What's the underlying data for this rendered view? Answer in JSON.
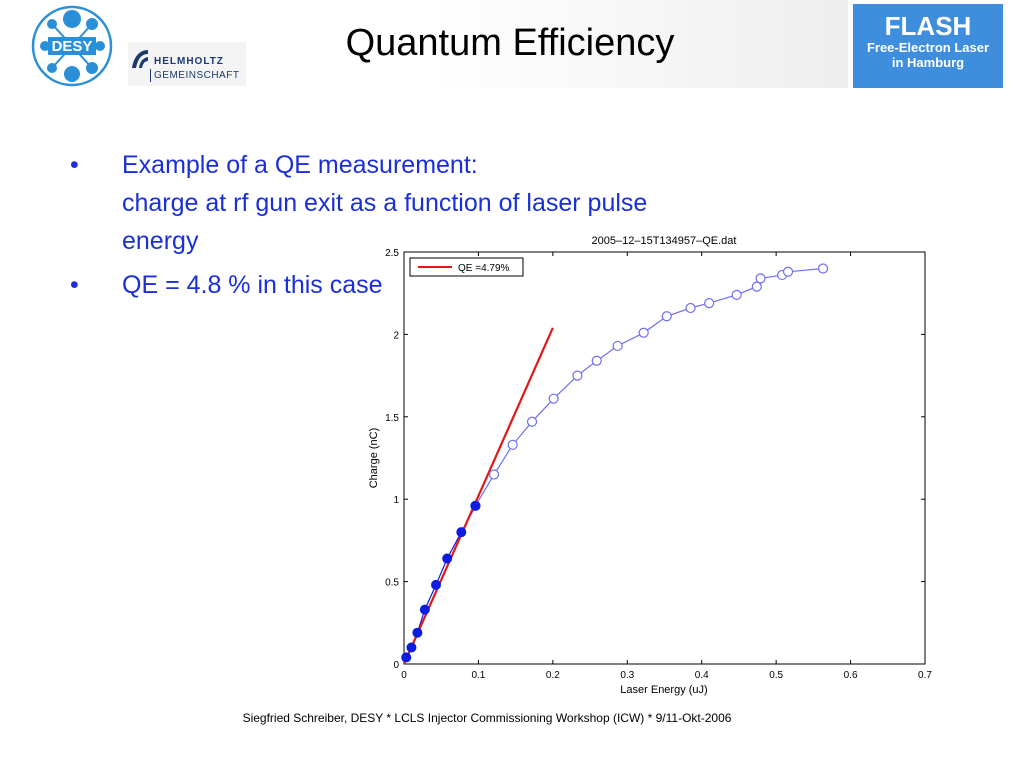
{
  "header": {
    "desy_label": "DESY",
    "helmholtz_line1": "HELMHOLTZ",
    "helmholtz_line2": "GEMEINSCHAFT",
    "title": "Quantum Efficiency",
    "flash_title": "FLASH",
    "flash_line1": "Free-Electron Laser",
    "flash_line2": "in Hamburg"
  },
  "bullets": [
    {
      "marker": "•",
      "lines": [
        "Example of a QE measurement:",
        "charge at rf gun exit as a function of laser pulse",
        "energy"
      ]
    },
    {
      "marker": "•",
      "lines": [
        "QE = 4.8 % in this case"
      ]
    }
  ],
  "chart_data": {
    "type": "scatter",
    "title": "2005–12–15T134957–QE.dat",
    "xlabel": "Laser Energy (uJ)",
    "ylabel": "Charge (nC)",
    "xlim": [
      0,
      0.7
    ],
    "ylim": [
      0,
      2.5
    ],
    "xticks": [
      0,
      0.1,
      0.2,
      0.3,
      0.4,
      0.5,
      0.6,
      0.7
    ],
    "xtick_labels": [
      "0",
      "0.1",
      "0.2",
      "0.3",
      "0.4",
      "0.5",
      "0.6",
      "0.7"
    ],
    "yticks": [
      0,
      0.5,
      1,
      1.5,
      2,
      2.5
    ],
    "ytick_labels": [
      "0",
      "0.5",
      "1",
      "1.5",
      "2",
      "2.5"
    ],
    "legend": {
      "position": "top-left",
      "entry": "QE =4.79%"
    },
    "colors": {
      "filled": "#0a1de0",
      "open": "#6f6ff2",
      "fit": "#e01818"
    },
    "series": [
      {
        "style": "filled",
        "x": [
          0.003,
          0.01,
          0.018,
          0.028,
          0.043,
          0.058,
          0.077,
          0.096
        ],
        "y": [
          0.04,
          0.1,
          0.19,
          0.33,
          0.48,
          0.64,
          0.8,
          0.96
        ]
      },
      {
        "style": "open",
        "x": [
          0.096,
          0.121,
          0.146,
          0.172,
          0.201,
          0.233,
          0.259,
          0.287,
          0.322,
          0.353,
          0.385,
          0.41,
          0.447,
          0.474,
          0.479,
          0.508,
          0.516,
          0.563
        ],
        "y": [
          0.96,
          1.15,
          1.33,
          1.47,
          1.61,
          1.75,
          1.84,
          1.93,
          2.01,
          2.11,
          2.16,
          2.19,
          2.24,
          2.29,
          2.34,
          2.36,
          2.38,
          2.4
        ]
      }
    ],
    "fit_line": {
      "x": [
        0,
        0.2
      ],
      "y": [
        0,
        2.04
      ]
    }
  },
  "footer": "Siegfried Schreiber, DESY  * LCLS Injector Commissioning Workshop (ICW) * 9/11-Okt-2006"
}
